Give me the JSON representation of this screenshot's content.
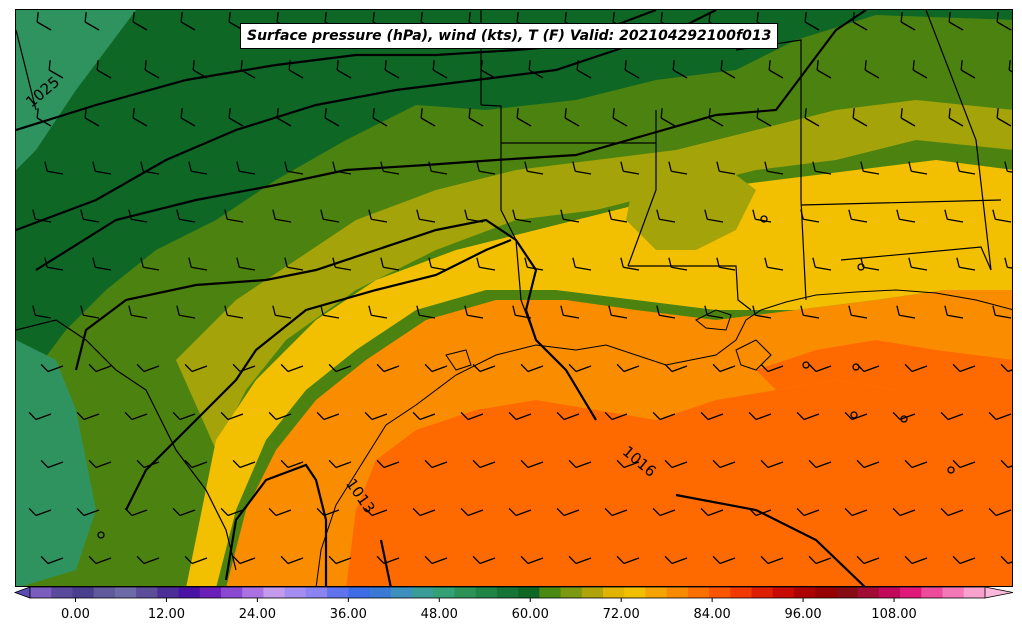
{
  "title": "Surface pressure (hPa), wind (kts), T (F) Valid: 202104292100f013",
  "isobar_labels": {
    "north": "1025",
    "east": "1016",
    "south": "1013"
  },
  "colorbar": {
    "ticks": [
      "0.00",
      "12.00",
      "24.00",
      "36.00",
      "48.00",
      "60.00",
      "72.00",
      "84.00",
      "96.00",
      "108.00"
    ],
    "tick_values": [
      0,
      12,
      24,
      36,
      48,
      60,
      72,
      84,
      96,
      108
    ],
    "min": -6,
    "max": 120,
    "step": 3,
    "colors": [
      "#7b5cbf",
      "#5a4a9e",
      "#4a3f8f",
      "#5f5a9c",
      "#6d6aa8",
      "#5d4e9a",
      "#4b2f97",
      "#4a13a6",
      "#6a1fb8",
      "#8a48d2",
      "#a972e0",
      "#c49aec",
      "#a38df0",
      "#8a83f0",
      "#5e73ec",
      "#3d6ce6",
      "#3a79d4",
      "#3d8fbd",
      "#3a9c98",
      "#33a075",
      "#2c9258",
      "#1f8445",
      "#167436",
      "#0f6726",
      "#4a8a12",
      "#7c9911",
      "#b0a30b",
      "#e0b400",
      "#f2bf00",
      "#f5a300",
      "#f88a00",
      "#fa7000",
      "#fa5500",
      "#f23a00",
      "#dd1e00",
      "#c80a00",
      "#ad0000",
      "#970000",
      "#860b12",
      "#a00a35",
      "#c2085a",
      "#df187a",
      "#ec4a9a",
      "#f477b8",
      "#f9a2d0"
    ]
  },
  "colors": {
    "ocean_warm": "#ff6a00",
    "warm": "#fa8c00",
    "mild": "#f2c000",
    "olive": "#a4a30a",
    "green": "#4c8310",
    "dark_green": "#0f6726",
    "teal": "#2f9360"
  }
}
